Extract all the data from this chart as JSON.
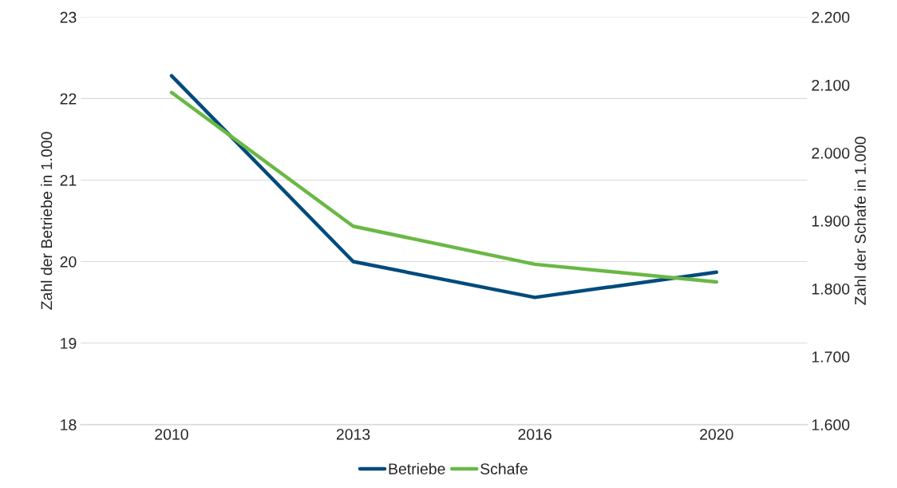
{
  "chart_data": {
    "type": "line",
    "ylabel": "Zahl der Betriebe in 1.000",
    "y2label": "Zahl der Schafe in 1.000",
    "categories": [
      "2010",
      "2013",
      "2016",
      "2020"
    ],
    "series": [
      {
        "name": "Betriebe",
        "color": "#004b7c",
        "values": [
          22.28,
          20.0,
          19.56,
          19.87
        ]
      },
      {
        "name": "Schafe",
        "color": "#6ab845",
        "axis": "y2",
        "values": [
          2089,
          1892,
          1836,
          1810
        ]
      }
    ],
    "ylim": [
      18,
      23
    ],
    "yticks": [
      18,
      19,
      20,
      21,
      22,
      23
    ],
    "y2lim": [
      1600,
      2200
    ],
    "y2ticks": [
      {
        "value": 1600,
        "label": "1.600"
      },
      {
        "value": 1700,
        "label": "1.700"
      },
      {
        "value": 1800,
        "label": "1.800"
      },
      {
        "value": 1900,
        "label": "1.900"
      },
      {
        "value": 2000,
        "label": "2.000"
      },
      {
        "value": 2100,
        "label": "2.100"
      },
      {
        "value": 2200,
        "label": "2.200"
      }
    ],
    "grid": "y",
    "legend": "bottom",
    "marker": "none",
    "line_style": "solid"
  }
}
